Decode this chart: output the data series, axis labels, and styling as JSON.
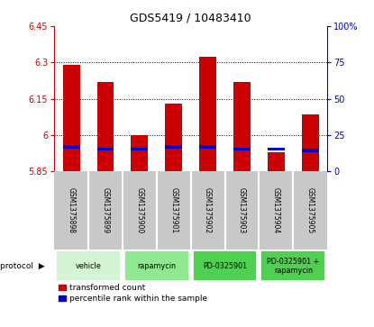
{
  "title": "GDS5419 / 10483410",
  "samples": [
    "GSM1375898",
    "GSM1375899",
    "GSM1375900",
    "GSM1375901",
    "GSM1375902",
    "GSM1375903",
    "GSM1375904",
    "GSM1375905"
  ],
  "red_values": [
    6.29,
    6.22,
    6.0,
    6.13,
    6.325,
    6.22,
    5.93,
    6.085
  ],
  "blue_values": [
    5.945,
    5.935,
    5.935,
    5.945,
    5.945,
    5.935,
    5.935,
    5.93
  ],
  "bar_bottom": 5.85,
  "ylim_left": [
    5.85,
    6.45
  ],
  "yticks_left": [
    5.85,
    6.0,
    6.15,
    6.3,
    6.45
  ],
  "ytick_labels_left": [
    "5.85",
    "6",
    "6.15",
    "6.3",
    "6.45"
  ],
  "ylim_right": [
    0,
    100
  ],
  "yticks_right": [
    0,
    25,
    50,
    75,
    100
  ],
  "ytick_labels_right": [
    "0",
    "25",
    "50",
    "75",
    "100%"
  ],
  "protocol_configs": [
    {
      "label": "vehicle",
      "start": 0,
      "end": 1,
      "color": "#d4f5d4"
    },
    {
      "label": "rapamycin",
      "start": 2,
      "end": 3,
      "color": "#90e890"
    },
    {
      "label": "PD-0325901",
      "start": 4,
      "end": 5,
      "color": "#50d050"
    },
    {
      "label": "PD-0325901 +\nrapamycin",
      "start": 6,
      "end": 7,
      "color": "#50d050"
    }
  ],
  "bar_color_red": "#cc0000",
  "bar_color_blue": "#0000cc",
  "bar_width": 0.5,
  "bg_sample_label": "#c8c8c8",
  "left_axis_color": "#cc0000",
  "right_axis_color": "#0000cc",
  "legend_red_label": "transformed count",
  "legend_blue_label": "percentile rank within the sample",
  "grid_lines": [
    6.0,
    6.15,
    6.3
  ],
  "blue_bar_height": 0.012
}
